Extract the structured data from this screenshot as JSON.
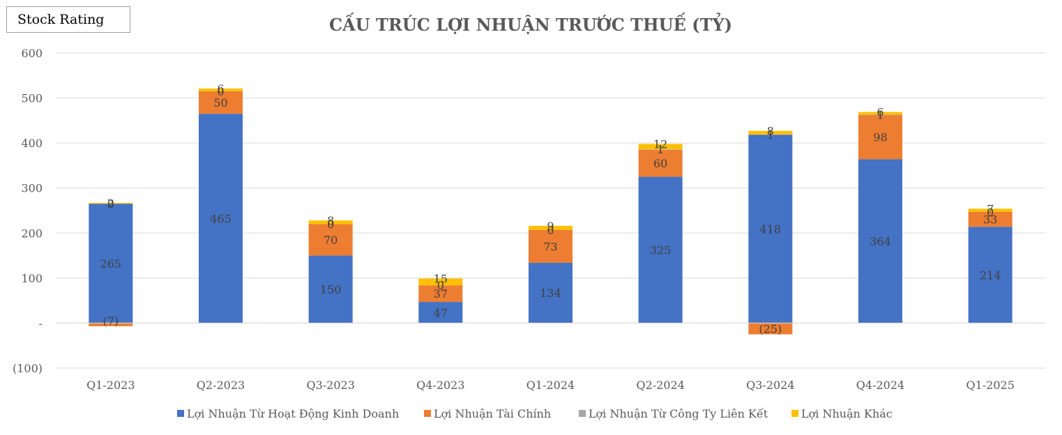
{
  "badge": {
    "label": "Stock Rating"
  },
  "chart_data": {
    "type": "bar",
    "stacked": true,
    "title": "CẤU TRÚC LỢI NHUẬN TRƯỚC THUẾ (TỶ)",
    "categories": [
      "Q1-2023",
      "Q2-2023",
      "Q3-2023",
      "Q4-2023",
      "Q1-2024",
      "Q2-2024",
      "Q3-2024",
      "Q4-2024",
      "Q1-2025"
    ],
    "ylim": [
      -100,
      600
    ],
    "yticks": [
      -100,
      0,
      100,
      200,
      300,
      400,
      500,
      600
    ],
    "ytick_labels": [
      "(100)",
      "-",
      "100",
      "200",
      "300",
      "400",
      "500",
      "600"
    ],
    "grid": true,
    "legend_position": "bottom",
    "series": [
      {
        "name": "Lợi Nhuận Từ Hoạt Động Kinh Doanh",
        "color": "#4472C4",
        "values": [
          265,
          465,
          150,
          47,
          134,
          325,
          418,
          364,
          214
        ],
        "labels": [
          "265",
          "465",
          "150",
          "47",
          "134",
          "325",
          "418",
          "364",
          "214"
        ]
      },
      {
        "name": "Lợi Nhuận Tài Chính",
        "color": "#ED7D31",
        "values": [
          -7,
          50,
          70,
          37,
          73,
          60,
          -25,
          98,
          33
        ],
        "labels": [
          "(7)",
          "50",
          "70",
          "37",
          "73",
          "60",
          "(25)",
          "98",
          "33"
        ]
      },
      {
        "name": "Lợi Nhuận Từ Công Ty Liên Kết",
        "color": "#A5A5A5",
        "values": [
          0,
          0,
          0,
          0,
          0,
          1,
          1,
          1,
          0
        ],
        "labels": [
          "0",
          "0",
          "0",
          "0",
          "0",
          "1",
          "1",
          "1",
          "0"
        ]
      },
      {
        "name": "Lợi Nhuận Khác",
        "color": "#FFC000",
        "values": [
          2,
          6,
          8,
          15,
          9,
          12,
          8,
          6,
          7
        ],
        "labels": [
          "2",
          "6",
          "8",
          "15",
          "9",
          "12",
          "8",
          "6",
          "7"
        ]
      }
    ]
  }
}
